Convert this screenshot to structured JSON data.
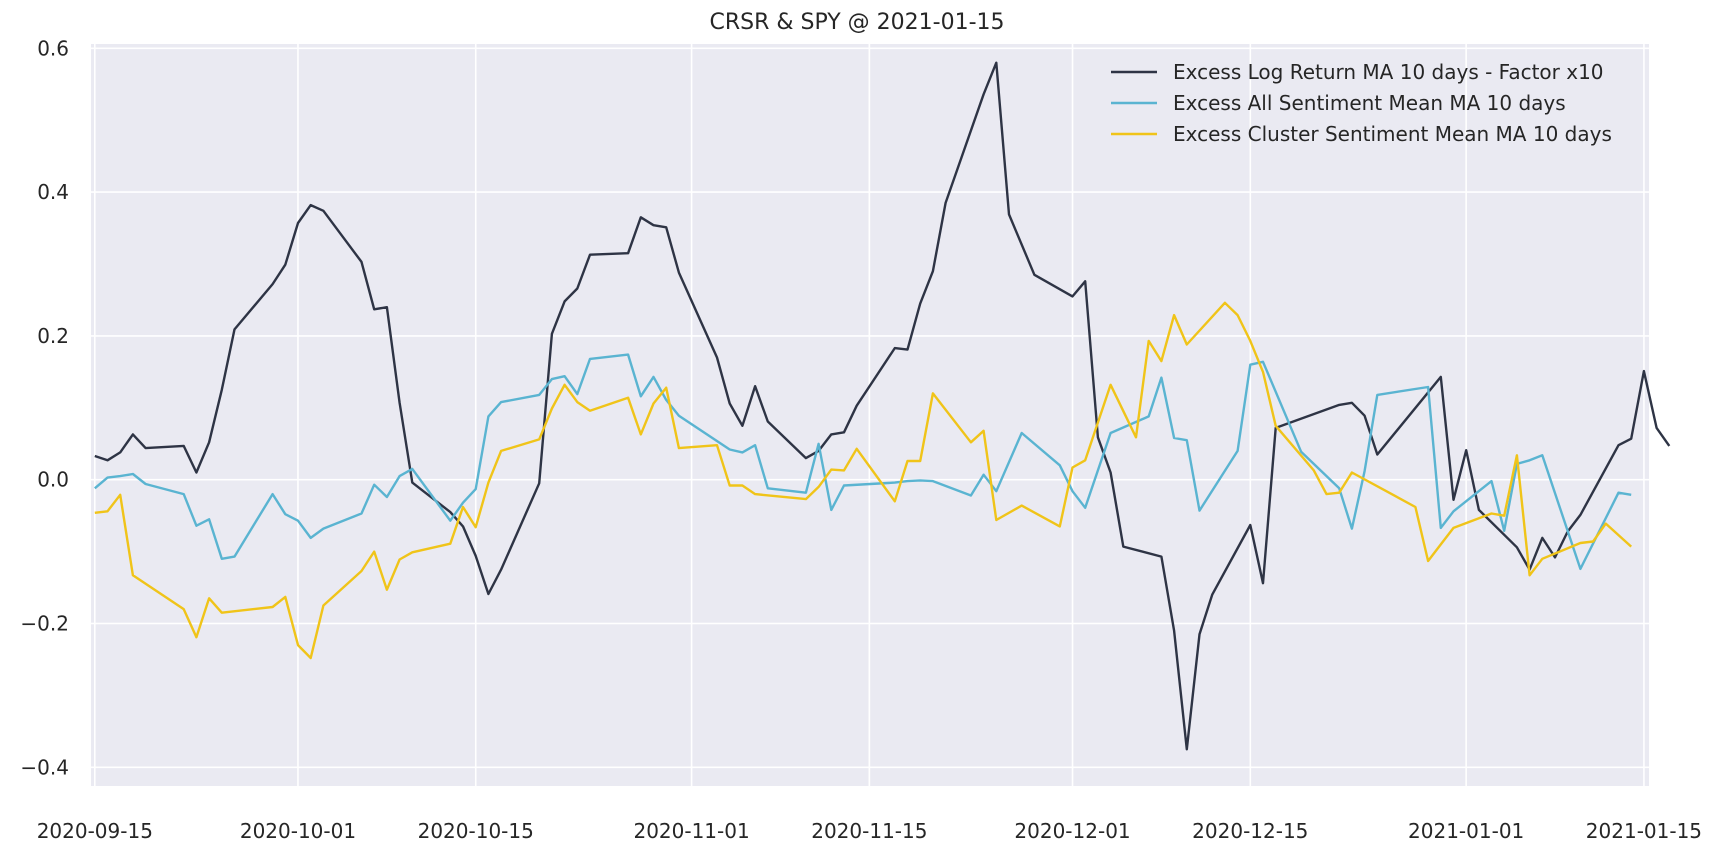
{
  "chart_data": {
    "type": "line",
    "title": "CRSR & SPY @ 2021-01-15",
    "xlabel": "",
    "ylabel": "",
    "xlim": [
      "2020-09-15",
      "2021-01-15"
    ],
    "ylim": [
      -0.4,
      0.6
    ],
    "grid": true,
    "legend_position": "top-right",
    "x_ticks": [
      "2020-09-15",
      "2020-10-01",
      "2020-10-15",
      "2020-11-01",
      "2020-11-15",
      "2020-12-01",
      "2020-12-15",
      "2021-01-01",
      "2021-01-15"
    ],
    "y_ticks": [
      {
        "value": 0.6,
        "label": "0.6"
      },
      {
        "value": 0.4,
        "label": "0.4"
      },
      {
        "value": 0.2,
        "label": "0.2"
      },
      {
        "value": 0.0,
        "label": "0.0"
      },
      {
        "value": -0.2,
        "label": "−0.2"
      },
      {
        "value": -0.4,
        "label": "−0.4"
      }
    ],
    "series": [
      {
        "name": "Excess Log Return MA 10 days - Factor x10",
        "color": "#2e3445",
        "points": [
          [
            "2020-09-15",
            0.033
          ],
          [
            "2020-09-16",
            0.027
          ],
          [
            "2020-09-17",
            0.038
          ],
          [
            "2020-09-18",
            0.063
          ],
          [
            "2020-09-19",
            0.044
          ],
          [
            "2020-09-22",
            0.047
          ],
          [
            "2020-09-23",
            0.01
          ],
          [
            "2020-09-24",
            0.052
          ],
          [
            "2020-09-25",
            0.125
          ],
          [
            "2020-09-26",
            0.209
          ],
          [
            "2020-09-29",
            0.272
          ],
          [
            "2020-09-30",
            0.299
          ],
          [
            "2020-10-01",
            0.357
          ],
          [
            "2020-10-02",
            0.382
          ],
          [
            "2020-10-03",
            0.374
          ],
          [
            "2020-10-06",
            0.303
          ],
          [
            "2020-10-07",
            0.237
          ],
          [
            "2020-10-08",
            0.24
          ],
          [
            "2020-10-09",
            0.107
          ],
          [
            "2020-10-10",
            -0.004
          ],
          [
            "2020-10-13",
            -0.045
          ],
          [
            "2020-10-14",
            -0.065
          ],
          [
            "2020-10-15",
            -0.106
          ],
          [
            "2020-10-16",
            -0.159
          ],
          [
            "2020-10-17",
            -0.125
          ],
          [
            "2020-10-20",
            -0.005
          ],
          [
            "2020-10-21",
            0.203
          ],
          [
            "2020-10-22",
            0.248
          ],
          [
            "2020-10-23",
            0.266
          ],
          [
            "2020-10-24",
            0.313
          ],
          [
            "2020-10-27",
            0.315
          ],
          [
            "2020-10-28",
            0.365
          ],
          [
            "2020-10-29",
            0.354
          ],
          [
            "2020-10-30",
            0.351
          ],
          [
            "2020-10-31",
            0.288
          ],
          [
            "2020-11-03",
            0.17
          ],
          [
            "2020-11-04",
            0.106
          ],
          [
            "2020-11-05",
            0.075
          ],
          [
            "2020-11-06",
            0.13
          ],
          [
            "2020-11-07",
            0.081
          ],
          [
            "2020-11-10",
            0.03
          ],
          [
            "2020-11-11",
            0.04
          ],
          [
            "2020-11-12",
            0.063
          ],
          [
            "2020-11-13",
            0.066
          ],
          [
            "2020-11-14",
            0.103
          ],
          [
            "2020-11-17",
            0.183
          ],
          [
            "2020-11-18",
            0.181
          ],
          [
            "2020-11-19",
            0.245
          ],
          [
            "2020-11-20",
            0.29
          ],
          [
            "2020-11-21",
            0.385
          ],
          [
            "2020-11-24",
            0.536
          ],
          [
            "2020-11-25",
            0.58
          ],
          [
            "2020-11-26",
            0.369
          ],
          [
            "2020-11-28",
            0.285
          ],
          [
            "2020-12-01",
            0.255
          ],
          [
            "2020-12-02",
            0.276
          ],
          [
            "2020-12-03",
            0.059
          ],
          [
            "2020-12-04",
            0.01
          ],
          [
            "2020-12-05",
            -0.093
          ],
          [
            "2020-12-08",
            -0.107
          ],
          [
            "2020-12-09",
            -0.21
          ],
          [
            "2020-12-10",
            -0.375
          ],
          [
            "2020-12-11",
            -0.215
          ],
          [
            "2020-12-12",
            -0.16
          ],
          [
            "2020-12-15",
            -0.063
          ],
          [
            "2020-12-16",
            -0.144
          ],
          [
            "2020-12-17",
            0.072
          ],
          [
            "2020-12-22",
            0.104
          ],
          [
            "2020-12-23",
            0.107
          ],
          [
            "2020-12-24",
            0.089
          ],
          [
            "2020-12-25",
            0.035
          ],
          [
            "2020-12-30",
            0.143
          ],
          [
            "2020-12-31",
            -0.028
          ],
          [
            "2021-01-01",
            0.041
          ],
          [
            "2021-01-02",
            -0.042
          ],
          [
            "2021-01-05",
            -0.094
          ],
          [
            "2021-01-06",
            -0.125
          ],
          [
            "2021-01-07",
            -0.081
          ],
          [
            "2021-01-08",
            -0.108
          ],
          [
            "2021-01-09",
            -0.072
          ],
          [
            "2021-01-10",
            -0.049
          ],
          [
            "2021-01-13",
            0.048
          ],
          [
            "2021-01-14",
            0.057
          ],
          [
            "2021-01-15",
            0.151
          ],
          [
            "2021-01-16",
            0.072
          ],
          [
            "2021-01-17",
            0.047
          ]
        ]
      },
      {
        "name": "Excess All Sentiment Mean MA 10 days",
        "color": "#5ab4d1",
        "points": [
          [
            "2020-09-15",
            -0.012
          ],
          [
            "2020-09-16",
            0.003
          ],
          [
            "2020-09-17",
            0.005
          ],
          [
            "2020-09-18",
            0.008
          ],
          [
            "2020-09-19",
            -0.006
          ],
          [
            "2020-09-22",
            -0.02
          ],
          [
            "2020-09-23",
            -0.064
          ],
          [
            "2020-09-24",
            -0.055
          ],
          [
            "2020-09-25",
            -0.11
          ],
          [
            "2020-09-26",
            -0.107
          ],
          [
            "2020-09-29",
            -0.02
          ],
          [
            "2020-09-30",
            -0.048
          ],
          [
            "2020-10-01",
            -0.057
          ],
          [
            "2020-10-02",
            -0.081
          ],
          [
            "2020-10-03",
            -0.068
          ],
          [
            "2020-10-06",
            -0.047
          ],
          [
            "2020-10-07",
            -0.007
          ],
          [
            "2020-10-08",
            -0.024
          ],
          [
            "2020-10-09",
            0.005
          ],
          [
            "2020-10-10",
            0.015
          ],
          [
            "2020-10-13",
            -0.057
          ],
          [
            "2020-10-14",
            -0.032
          ],
          [
            "2020-10-15",
            -0.013
          ],
          [
            "2020-10-16",
            0.088
          ],
          [
            "2020-10-17",
            0.108
          ],
          [
            "2020-10-20",
            0.118
          ],
          [
            "2020-10-21",
            0.14
          ],
          [
            "2020-10-22",
            0.144
          ],
          [
            "2020-10-23",
            0.119
          ],
          [
            "2020-10-24",
            0.168
          ],
          [
            "2020-10-27",
            0.174
          ],
          [
            "2020-10-28",
            0.116
          ],
          [
            "2020-10-29",
            0.143
          ],
          [
            "2020-10-30",
            0.111
          ],
          [
            "2020-10-31",
            0.089
          ],
          [
            "2020-11-04",
            0.042
          ],
          [
            "2020-11-05",
            0.038
          ],
          [
            "2020-11-06",
            0.048
          ],
          [
            "2020-11-07",
            -0.012
          ],
          [
            "2020-11-10",
            -0.018
          ],
          [
            "2020-11-11",
            0.05
          ],
          [
            "2020-11-12",
            -0.042
          ],
          [
            "2020-11-13",
            -0.008
          ],
          [
            "2020-11-17",
            -0.004
          ],
          [
            "2020-11-18",
            -0.002
          ],
          [
            "2020-11-19",
            -0.001
          ],
          [
            "2020-11-20",
            -0.002
          ],
          [
            "2020-11-23",
            -0.022
          ],
          [
            "2020-11-24",
            0.007
          ],
          [
            "2020-11-25",
            -0.016
          ],
          [
            "2020-11-27",
            0.065
          ],
          [
            "2020-11-30",
            0.02
          ],
          [
            "2020-12-01",
            -0.016
          ],
          [
            "2020-12-02",
            -0.039
          ],
          [
            "2020-12-04",
            0.065
          ],
          [
            "2020-12-07",
            0.088
          ],
          [
            "2020-12-08",
            0.142
          ],
          [
            "2020-12-09",
            0.058
          ],
          [
            "2020-12-10",
            0.055
          ],
          [
            "2020-12-11",
            -0.043
          ],
          [
            "2020-12-14",
            0.04
          ],
          [
            "2020-12-15",
            0.16
          ],
          [
            "2020-12-16",
            0.164
          ],
          [
            "2020-12-19",
            0.039
          ],
          [
            "2020-12-22",
            -0.012
          ],
          [
            "2020-12-23",
            -0.068
          ],
          [
            "2020-12-24",
            0.012
          ],
          [
            "2020-12-25",
            0.118
          ],
          [
            "2020-12-29",
            0.129
          ],
          [
            "2020-12-30",
            -0.067
          ],
          [
            "2020-12-31",
            -0.044
          ],
          [
            "2021-01-03",
            -0.002
          ],
          [
            "2021-01-04",
            -0.071
          ],
          [
            "2021-01-05",
            0.022
          ],
          [
            "2021-01-06",
            0.027
          ],
          [
            "2021-01-07",
            0.034
          ],
          [
            "2021-01-10",
            -0.124
          ],
          [
            "2021-01-13",
            -0.018
          ],
          [
            "2021-01-14",
            -0.021
          ]
        ]
      },
      {
        "name": "Excess Cluster Sentiment Mean MA 10 days",
        "color": "#f0c419",
        "points": [
          [
            "2020-09-15",
            -0.046
          ],
          [
            "2020-09-16",
            -0.044
          ],
          [
            "2020-09-17",
            -0.021
          ],
          [
            "2020-09-18",
            -0.133
          ],
          [
            "2020-09-22",
            -0.18
          ],
          [
            "2020-09-23",
            -0.219
          ],
          [
            "2020-09-24",
            -0.165
          ],
          [
            "2020-09-25",
            -0.185
          ],
          [
            "2020-09-29",
            -0.177
          ],
          [
            "2020-09-30",
            -0.163
          ],
          [
            "2020-10-01",
            -0.23
          ],
          [
            "2020-10-02",
            -0.248
          ],
          [
            "2020-10-03",
            -0.175
          ],
          [
            "2020-10-06",
            -0.127
          ],
          [
            "2020-10-07",
            -0.1
          ],
          [
            "2020-10-08",
            -0.153
          ],
          [
            "2020-10-09",
            -0.111
          ],
          [
            "2020-10-10",
            -0.101
          ],
          [
            "2020-10-13",
            -0.089
          ],
          [
            "2020-10-14",
            -0.038
          ],
          [
            "2020-10-15",
            -0.066
          ],
          [
            "2020-10-16",
            -0.004
          ],
          [
            "2020-10-17",
            0.04
          ],
          [
            "2020-10-20",
            0.056
          ],
          [
            "2020-10-21",
            0.099
          ],
          [
            "2020-10-22",
            0.132
          ],
          [
            "2020-10-23",
            0.108
          ],
          [
            "2020-10-24",
            0.096
          ],
          [
            "2020-10-27",
            0.114
          ],
          [
            "2020-10-28",
            0.063
          ],
          [
            "2020-10-29",
            0.106
          ],
          [
            "2020-10-30",
            0.128
          ],
          [
            "2020-10-31",
            0.044
          ],
          [
            "2020-11-03",
            0.048
          ],
          [
            "2020-11-04",
            -0.008
          ],
          [
            "2020-11-05",
            -0.008
          ],
          [
            "2020-11-06",
            -0.02
          ],
          [
            "2020-11-10",
            -0.027
          ],
          [
            "2020-11-11",
            -0.01
          ],
          [
            "2020-11-12",
            0.014
          ],
          [
            "2020-11-13",
            0.013
          ],
          [
            "2020-11-14",
            0.043
          ],
          [
            "2020-11-17",
            -0.03
          ],
          [
            "2020-11-18",
            0.026
          ],
          [
            "2020-11-19",
            0.026
          ],
          [
            "2020-11-20",
            0.12
          ],
          [
            "2020-11-23",
            0.052
          ],
          [
            "2020-11-24",
            0.068
          ],
          [
            "2020-11-25",
            -0.056
          ],
          [
            "2020-11-27",
            -0.036
          ],
          [
            "2020-11-30",
            -0.065
          ],
          [
            "2020-12-01",
            0.017
          ],
          [
            "2020-12-02",
            0.027
          ],
          [
            "2020-12-04",
            0.132
          ],
          [
            "2020-12-06",
            0.059
          ],
          [
            "2020-12-07",
            0.193
          ],
          [
            "2020-12-08",
            0.165
          ],
          [
            "2020-12-09",
            0.229
          ],
          [
            "2020-12-10",
            0.188
          ],
          [
            "2020-12-13",
            0.246
          ],
          [
            "2020-12-14",
            0.229
          ],
          [
            "2020-12-15",
            0.193
          ],
          [
            "2020-12-16",
            0.15
          ],
          [
            "2020-12-17",
            0.075
          ],
          [
            "2020-12-20",
            0.013
          ],
          [
            "2020-12-21",
            -0.02
          ],
          [
            "2020-12-22",
            -0.018
          ],
          [
            "2020-12-23",
            0.01
          ],
          [
            "2020-12-28",
            -0.038
          ],
          [
            "2020-12-29",
            -0.113
          ],
          [
            "2020-12-30",
            -0.09
          ],
          [
            "2020-12-31",
            -0.067
          ],
          [
            "2021-01-03",
            -0.047
          ],
          [
            "2021-01-04",
            -0.05
          ],
          [
            "2021-01-05",
            0.034
          ],
          [
            "2021-01-06",
            -0.133
          ],
          [
            "2021-01-07",
            -0.11
          ],
          [
            "2021-01-10",
            -0.088
          ],
          [
            "2021-01-11",
            -0.086
          ],
          [
            "2021-01-12",
            -0.061
          ],
          [
            "2021-01-14",
            -0.093
          ]
        ]
      }
    ]
  }
}
